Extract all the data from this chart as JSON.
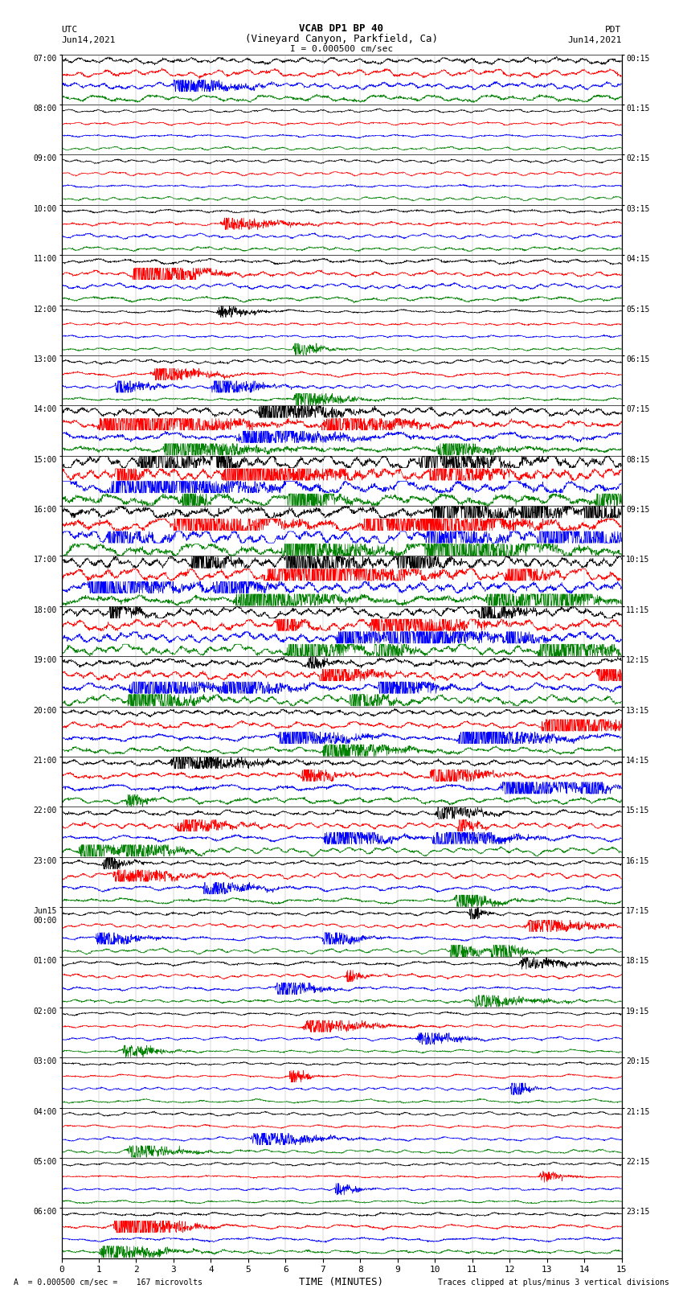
{
  "title_line1": "VCAB DP1 BP 40",
  "title_line2": "(Vineyard Canyon, Parkfield, Ca)",
  "scale_label": "I = 0.000500 cm/sec",
  "left_header": "UTC",
  "right_header": "PDT",
  "left_date": "Jun14,2021",
  "right_date": "Jun14,2021",
  "xlabel": "TIME (MINUTES)",
  "footer_left": "A  = 0.000500 cm/sec =    167 microvolts",
  "footer_right": "Traces clipped at plus/minus 3 vertical divisions",
  "xmin": 0,
  "xmax": 15,
  "xticks": [
    0,
    1,
    2,
    3,
    4,
    5,
    6,
    7,
    8,
    9,
    10,
    11,
    12,
    13,
    14,
    15
  ],
  "background_color": "#ffffff",
  "trace_colors": [
    "black",
    "red",
    "blue",
    "green"
  ],
  "utc_labels": [
    "07:00",
    "08:00",
    "09:00",
    "10:00",
    "11:00",
    "12:00",
    "13:00",
    "14:00",
    "15:00",
    "16:00",
    "17:00",
    "18:00",
    "19:00",
    "20:00",
    "21:00",
    "22:00",
    "23:00",
    "Jun15\n00:00",
    "01:00",
    "02:00",
    "03:00",
    "04:00",
    "05:00",
    "06:00"
  ],
  "pdt_labels": [
    "00:15",
    "01:15",
    "02:15",
    "03:15",
    "04:15",
    "05:15",
    "06:15",
    "07:15",
    "08:15",
    "09:15",
    "10:15",
    "11:15",
    "12:15",
    "13:15",
    "14:15",
    "15:15",
    "16:15",
    "17:15",
    "18:15",
    "19:15",
    "20:15",
    "21:15",
    "22:15",
    "23:15"
  ],
  "num_rows": 24,
  "traces_per_row": 4,
  "fig_width": 8.5,
  "fig_height": 16.13,
  "dpi": 100
}
